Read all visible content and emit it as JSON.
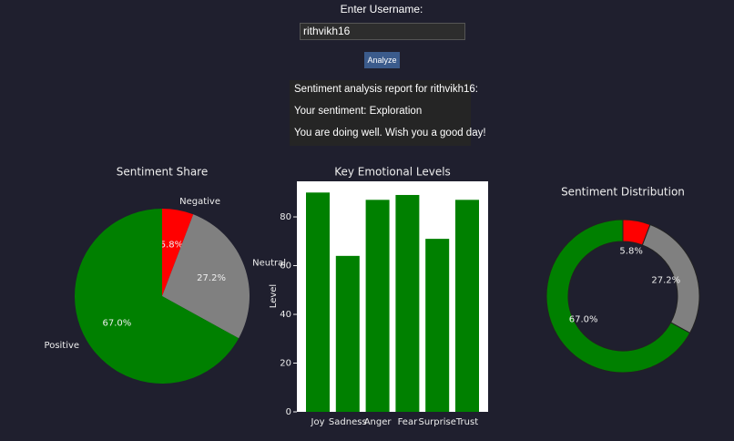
{
  "form": {
    "label": "Enter Username:",
    "username": "rithvikh16",
    "button": "Analyze"
  },
  "report": {
    "lines": [
      "Sentiment analysis report for rithvikh16:",
      "Your sentiment: Exploration",
      "You are doing well. Wish you a good day!"
    ]
  },
  "chart_data": [
    {
      "type": "pie",
      "title": "Sentiment Share",
      "categories": [
        "Negative",
        "Neutral",
        "Positive"
      ],
      "values": [
        5.8,
        27.2,
        67.0
      ],
      "value_labels": [
        "5.8%",
        "27.2%",
        "67.0%"
      ],
      "colors": [
        "#ff0000",
        "#808080",
        "#008000"
      ]
    },
    {
      "type": "bar",
      "title": "Key Emotional Levels",
      "ylabel": "Level",
      "categories": [
        "Joy",
        "Sadness",
        "Anger",
        "Fear",
        "Surprise",
        "Trust"
      ],
      "values": [
        90,
        64,
        87,
        89,
        71,
        87
      ],
      "color": "#008000",
      "ylim": [
        0,
        94.6
      ],
      "yticks": [
        0,
        20,
        40,
        60,
        80
      ]
    },
    {
      "type": "donut",
      "title": "Sentiment Distribution",
      "values": [
        5.8,
        27.2,
        67.0
      ],
      "value_labels": [
        "5.8%",
        "27.2%",
        "67.0%"
      ],
      "colors": [
        "#ff0000",
        "#808080",
        "#008000"
      ]
    }
  ]
}
